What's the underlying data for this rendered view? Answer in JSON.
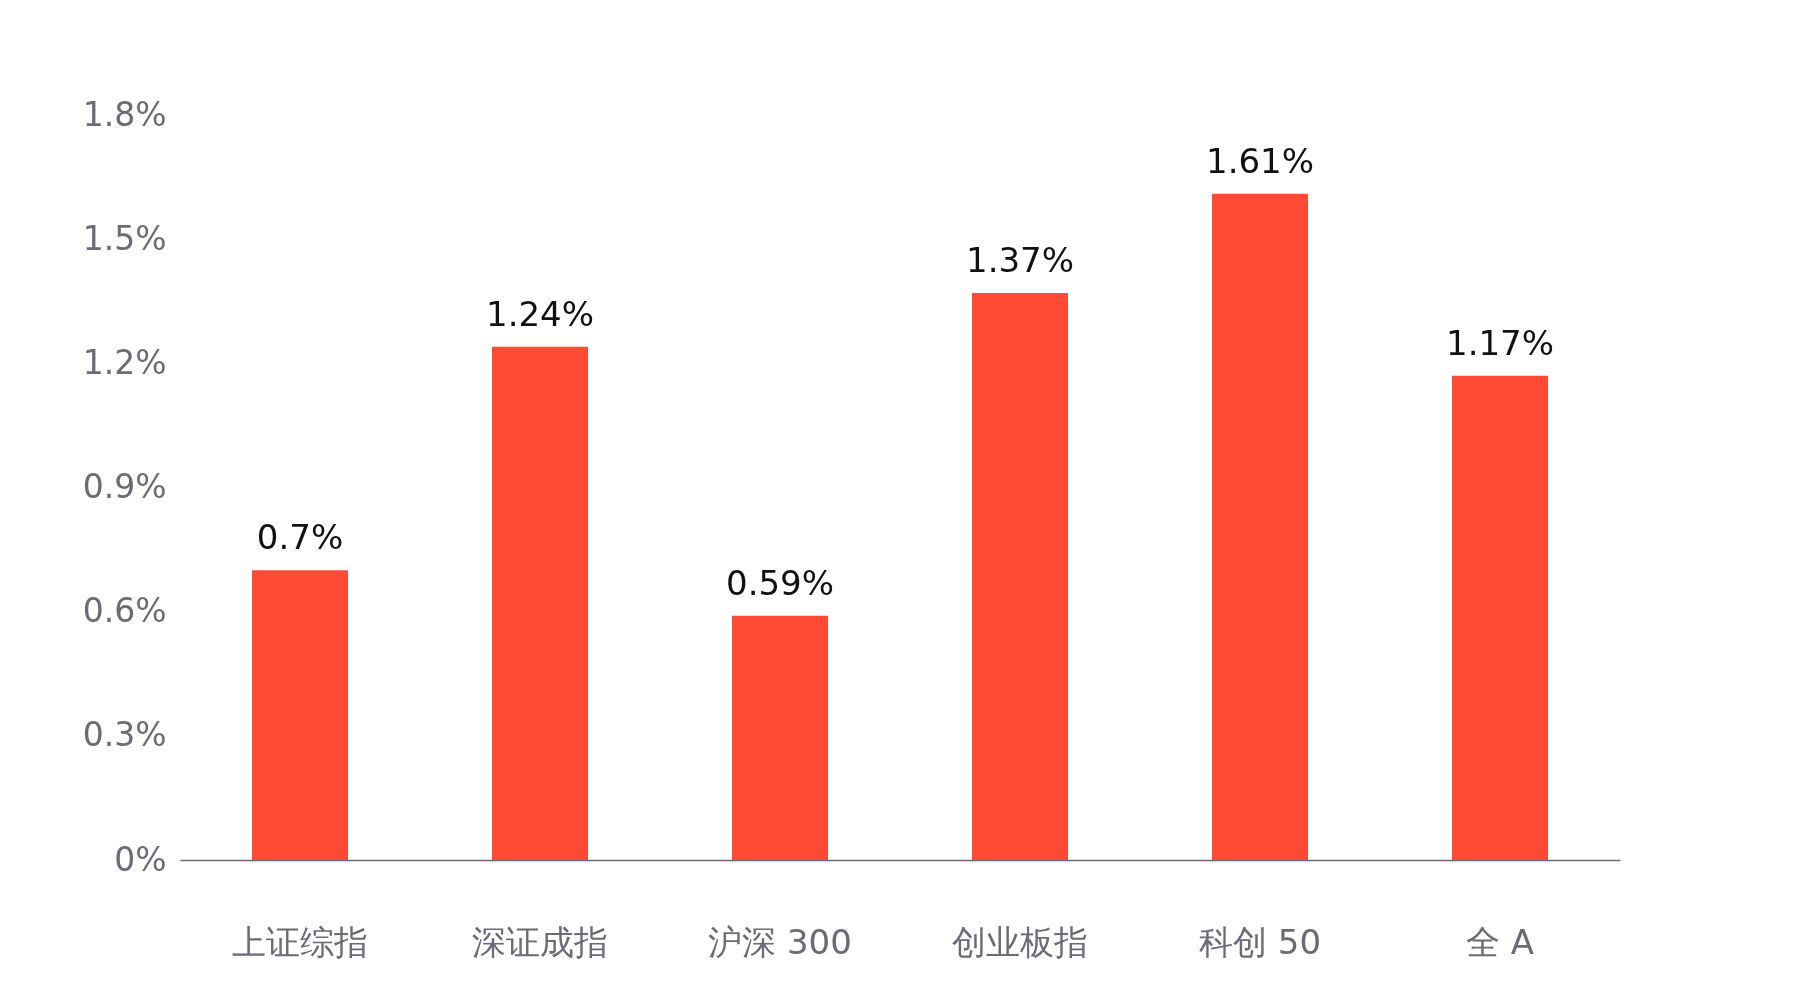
{
  "chart_data": {
    "type": "bar",
    "categories": [
      "上证综指",
      "深证成指",
      "沪深 300",
      "创业板指",
      "科创 50",
      "全 A"
    ],
    "values": [
      0.7,
      1.24,
      0.59,
      1.37,
      1.61,
      1.17
    ],
    "value_labels": [
      "0.7%",
      "1.24%",
      "0.59%",
      "1.37%",
      "1.61%",
      "1.17%"
    ],
    "color": "#ff4b33",
    "ylim": [
      0,
      1.8
    ],
    "yticks": [
      {
        "value": 0,
        "label": "0%"
      },
      {
        "value": 0.3,
        "label": "0.3%"
      },
      {
        "value": 0.6,
        "label": "0.6%"
      },
      {
        "value": 0.9,
        "label": "0.9%"
      },
      {
        "value": 1.2,
        "label": "1.2%"
      },
      {
        "value": 1.5,
        "label": "1.5%"
      },
      {
        "value": 1.8,
        "label": "1.8%"
      }
    ]
  }
}
